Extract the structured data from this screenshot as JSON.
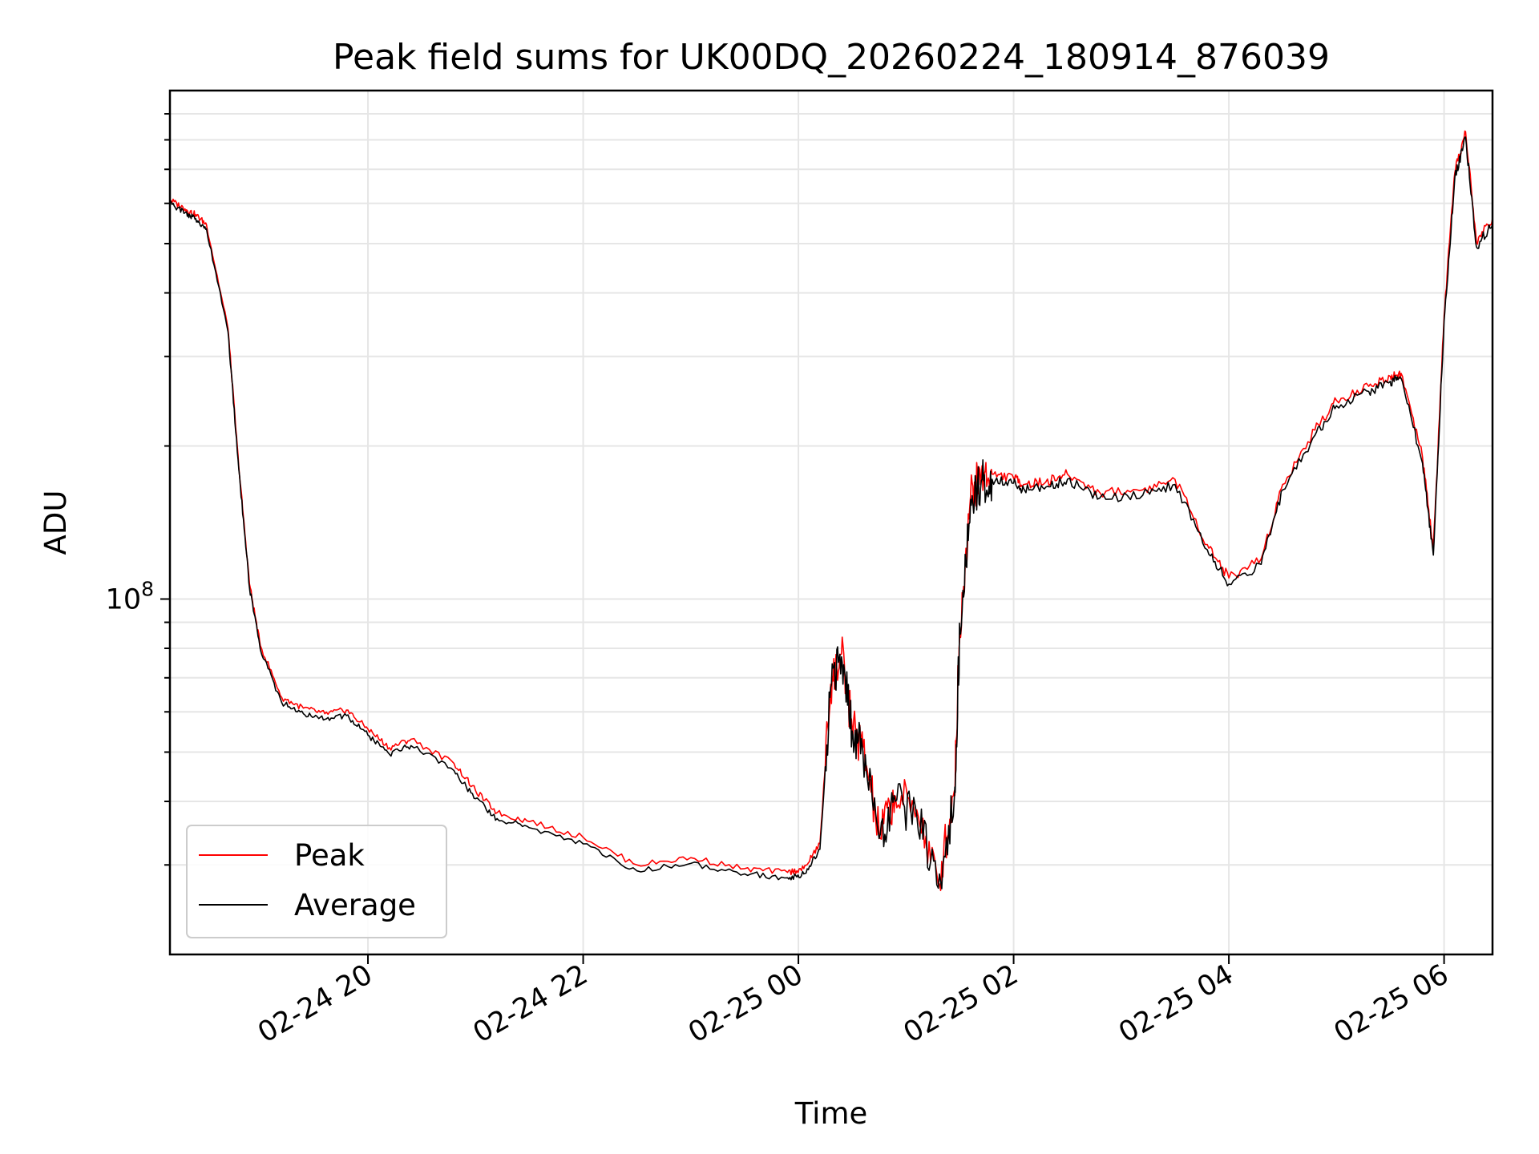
{
  "chart_data": {
    "type": "line",
    "title": "Peak field sums for UK00DQ_20260224_180914_876039",
    "xlabel": "Time",
    "ylabel": "ADU",
    "yscale": "log",
    "ylim": [
      20000000,
      1000000000
    ],
    "xlim_hours": [
      18.16,
      30.45
    ],
    "x_tick_hours": [
      20,
      22,
      24,
      26,
      28,
      30
    ],
    "x_tick_labels": [
      "02-24 20",
      "02-24 22",
      "02-25 00",
      "02-25 02",
      "02-25 04",
      "02-25 06"
    ],
    "y_major_ticks": [
      {
        "value": 100000000,
        "base": "10",
        "exp": "8"
      }
    ],
    "y_minor_ticks": [
      30000000,
      40000000,
      50000000,
      60000000,
      70000000,
      80000000,
      90000000,
      200000000,
      300000000,
      400000000,
      500000000,
      600000000,
      700000000,
      800000000,
      900000000
    ],
    "grid": true,
    "legend_position": "lower-left",
    "series": [
      {
        "name": "Peak",
        "color": "#ff0000",
        "x_hours": [
          18.16,
          18.3,
          18.4,
          18.5,
          18.7,
          18.8,
          18.9,
          19.0,
          19.2,
          19.4,
          19.6,
          19.8,
          20.0,
          20.2,
          20.4,
          20.8,
          21.0,
          21.2,
          21.5,
          22.0,
          22.5,
          23.0,
          23.5,
          23.9,
          24.05,
          24.2,
          24.3,
          24.4,
          24.5,
          24.6,
          24.75,
          24.9,
          25.1,
          25.3,
          25.45,
          25.5,
          25.6,
          25.7,
          25.8,
          26.0,
          26.1,
          26.3,
          26.5,
          26.8,
          27.2,
          27.5,
          27.8,
          28.0,
          28.3,
          28.5,
          28.8,
          29.0,
          29.3,
          29.5,
          29.6,
          29.8,
          29.9,
          30.0,
          30.1,
          30.2,
          30.3,
          30.45
        ],
        "values": [
          610000000,
          585000000,
          570000000,
          545000000,
          340000000,
          182000000,
          107000000,
          81000000,
          64000000,
          61000000,
          59500000,
          60500000,
          55500000,
          51000000,
          53000000,
          47500000,
          42000000,
          38000000,
          36500000,
          34000000,
          30000000,
          31000000,
          29500000,
          29000000,
          29500000,
          33000000,
          68000000,
          78000000,
          56000000,
          51000000,
          34500000,
          41000000,
          38500000,
          27500000,
          42000000,
          88000000,
          160000000,
          175000000,
          176000000,
          173000000,
          168000000,
          170000000,
          176000000,
          162000000,
          164000000,
          172000000,
          128000000,
          110000000,
          120000000,
          168000000,
          215000000,
          246000000,
          262000000,
          274000000,
          278000000,
          190000000,
          125000000,
          360000000,
          690000000,
          830000000,
          505000000,
          560000000
        ]
      },
      {
        "name": "Average",
        "color": "#000000",
        "x_hours": [
          18.16,
          18.3,
          18.4,
          18.5,
          18.7,
          18.8,
          18.9,
          19.0,
          19.2,
          19.4,
          19.6,
          19.8,
          20.0,
          20.2,
          20.4,
          20.8,
          21.0,
          21.2,
          21.5,
          22.0,
          22.5,
          23.0,
          23.5,
          23.9,
          24.05,
          24.2,
          24.3,
          24.4,
          24.5,
          24.6,
          24.75,
          24.9,
          25.1,
          25.3,
          25.45,
          25.5,
          25.6,
          25.7,
          25.8,
          26.0,
          26.1,
          26.3,
          26.5,
          26.8,
          27.2,
          27.5,
          27.8,
          28.0,
          28.3,
          28.5,
          28.8,
          29.0,
          29.3,
          29.5,
          29.6,
          29.8,
          29.9,
          30.0,
          30.1,
          30.2,
          30.3,
          30.45
        ],
        "values": [
          600000000,
          575000000,
          560000000,
          535000000,
          335000000,
          180000000,
          105000000,
          79500000,
          62500000,
          59500000,
          58000000,
          59000000,
          54000000,
          49500000,
          51500000,
          46000000,
          40500000,
          37000000,
          35500000,
          33000000,
          29200000,
          30200000,
          28800000,
          28300000,
          28800000,
          32200000,
          67000000,
          77000000,
          55000000,
          50000000,
          33800000,
          40000000,
          37600000,
          27000000,
          41000000,
          86000000,
          157000000,
          171000000,
          172000000,
          169000000,
          164000000,
          166000000,
          172000000,
          158000000,
          160000000,
          168000000,
          125000000,
          107000000,
          117000000,
          164000000,
          210000000,
          240000000,
          256000000,
          268000000,
          272000000,
          185000000,
          122000000,
          352000000,
          675000000,
          810000000,
          493000000,
          548000000
        ]
      }
    ]
  }
}
